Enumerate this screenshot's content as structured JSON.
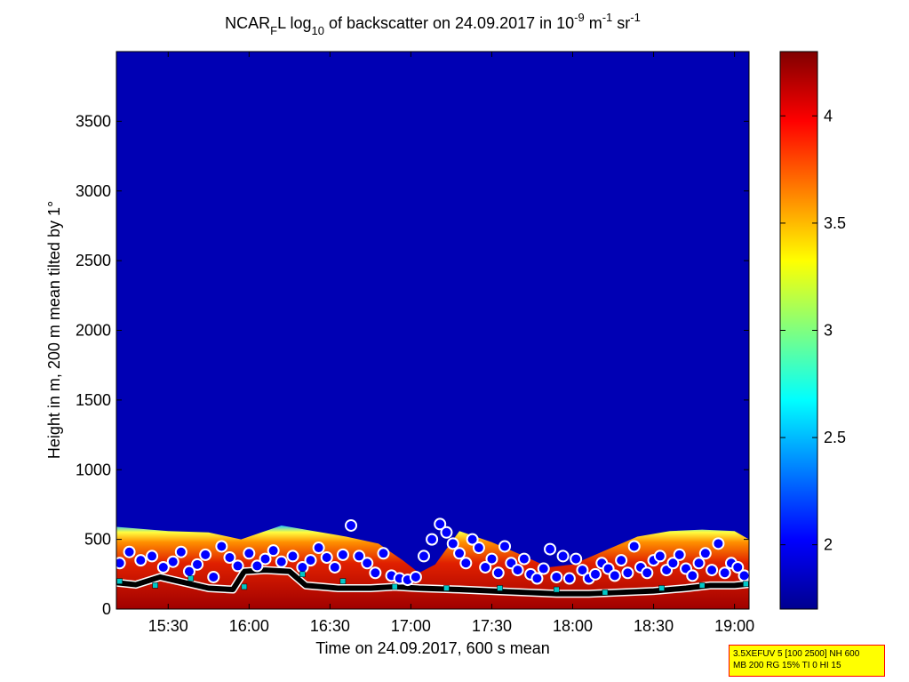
{
  "chart_data": {
    "type": "heatmap",
    "title": {
      "prefix": "NCAR",
      "sub1": "F",
      "mid1": "L log",
      "sub2": "10",
      "mid2": " of backscatter on 24.09.2017 in 10",
      "sup1": "-9",
      "mid3": " m",
      "sup2": "-1",
      "mid4": " sr",
      "sup3": "-1"
    },
    "xlabel": "Time on 24.09.2017, 600 s mean",
    "ylabel": "Height in m, 200 m mean tilted by 1°",
    "x_range_hours": [
      15.18,
      19.09
    ],
    "ylim": [
      0,
      4000
    ],
    "x_ticks": [
      {
        "value": 15.5,
        "label": "15:30"
      },
      {
        "value": 16.0,
        "label": "16:00"
      },
      {
        "value": 16.5,
        "label": "16:30"
      },
      {
        "value": 17.0,
        "label": "17:00"
      },
      {
        "value": 17.5,
        "label": "17:30"
      },
      {
        "value": 18.0,
        "label": "18:00"
      },
      {
        "value": 18.5,
        "label": "18:30"
      },
      {
        "value": 19.0,
        "label": "19:00"
      }
    ],
    "y_ticks": [
      {
        "value": 0,
        "label": "0"
      },
      {
        "value": 500,
        "label": "500"
      },
      {
        "value": 1000,
        "label": "1000"
      },
      {
        "value": 1500,
        "label": "1500"
      },
      {
        "value": 2000,
        "label": "2000"
      },
      {
        "value": 2500,
        "label": "2500"
      },
      {
        "value": 3000,
        "label": "3000"
      },
      {
        "value": 3500,
        "label": "3500"
      }
    ],
    "colorbar": {
      "range": [
        1.7,
        4.3
      ],
      "ticks": [
        {
          "value": 2,
          "label": "2"
        },
        {
          "value": 2.5,
          "label": "2.5"
        },
        {
          "value": 3,
          "label": "3"
        },
        {
          "value": 3.5,
          "label": "3.5"
        },
        {
          "value": 4,
          "label": "4"
        }
      ]
    },
    "background_value": 1.8,
    "layer_top": {
      "x": [
        15.18,
        15.5,
        15.75,
        15.95,
        16.2,
        16.4,
        16.6,
        16.8,
        16.95,
        17.05,
        17.15,
        17.3,
        17.5,
        17.7,
        17.85,
        18.0,
        18.2,
        18.4,
        18.6,
        18.8,
        19.0,
        19.09
      ],
      "y": [
        590,
        560,
        550,
        500,
        600,
        560,
        520,
        470,
        350,
        260,
        320,
        560,
        480,
        380,
        300,
        320,
        420,
        520,
        560,
        570,
        560,
        500
      ]
    },
    "boundary_line": {
      "x": [
        15.18,
        15.3,
        15.45,
        15.6,
        15.75,
        15.9,
        15.97,
        16.1,
        16.25,
        16.35,
        16.45,
        16.55,
        16.75,
        16.9,
        17.05,
        17.3,
        17.5,
        17.7,
        17.9,
        18.1,
        18.3,
        18.5,
        18.7,
        18.85,
        19.0,
        19.09
      ],
      "y": [
        190,
        175,
        230,
        190,
        150,
        140,
        270,
        280,
        270,
        170,
        160,
        150,
        150,
        160,
        150,
        140,
        130,
        120,
        110,
        110,
        120,
        130,
        150,
        170,
        170,
        180
      ]
    },
    "circle_markers": {
      "x": [
        15.2,
        15.26,
        15.33,
        15.4,
        15.47,
        15.53,
        15.58,
        15.63,
        15.68,
        15.73,
        15.78,
        15.83,
        15.88,
        15.93,
        16.0,
        16.05,
        16.1,
        16.15,
        16.2,
        16.27,
        16.33,
        16.38,
        16.43,
        16.48,
        16.53,
        16.58,
        16.63,
        16.68,
        16.73,
        16.78,
        16.83,
        16.88,
        16.93,
        16.98,
        17.03,
        17.08,
        17.13,
        17.18,
        17.22,
        17.26,
        17.3,
        17.34,
        17.38,
        17.42,
        17.46,
        17.5,
        17.54,
        17.58,
        17.62,
        17.66,
        17.7,
        17.74,
        17.78,
        17.82,
        17.86,
        17.9,
        17.94,
        17.98,
        18.02,
        18.06,
        18.1,
        18.14,
        18.18,
        18.22,
        18.26,
        18.3,
        18.34,
        18.38,
        18.42,
        18.46,
        18.5,
        18.54,
        18.58,
        18.62,
        18.66,
        18.7,
        18.74,
        18.78,
        18.82,
        18.86,
        18.9,
        18.94,
        18.98,
        19.02,
        19.06
      ],
      "y": [
        330,
        410,
        350,
        380,
        300,
        340,
        410,
        270,
        320,
        390,
        230,
        450,
        370,
        310,
        400,
        310,
        360,
        420,
        340,
        380,
        300,
        350,
        440,
        370,
        300,
        390,
        600,
        380,
        330,
        260,
        400,
        240,
        220,
        210,
        230,
        380,
        500,
        610,
        550,
        470,
        400,
        330,
        500,
        440,
        300,
        360,
        260,
        450,
        330,
        280,
        360,
        250,
        220,
        290,
        430,
        230,
        380,
        220,
        360,
        280,
        220,
        250,
        330,
        290,
        240,
        350,
        260,
        450,
        300,
        260,
        350,
        380,
        280,
        330,
        390,
        290,
        240,
        330,
        400,
        280,
        470,
        260,
        330,
        300,
        240
      ]
    },
    "square_markers": {
      "x": [
        15.2,
        15.42,
        15.64,
        15.97,
        16.33,
        16.58,
        16.9,
        17.22,
        17.55,
        17.9,
        18.2,
        18.55,
        18.8,
        19.07
      ],
      "y": [
        200,
        170,
        220,
        160,
        250,
        200,
        160,
        150,
        150,
        140,
        120,
        150,
        170,
        180
      ]
    }
  },
  "info_box": {
    "line1": "3.5XEFUV 5 [100 2500] NH 600",
    "line2": "MB 200 RG 15% TI 0 HI 15",
    "background": "#ffff00",
    "border": "#ff0000"
  },
  "colors": {
    "marker_circle_fill": "#0000ff",
    "marker_circle_edge": "#ffffff",
    "boundary_line": "#000000",
    "square_marker": "#00c8c8"
  }
}
